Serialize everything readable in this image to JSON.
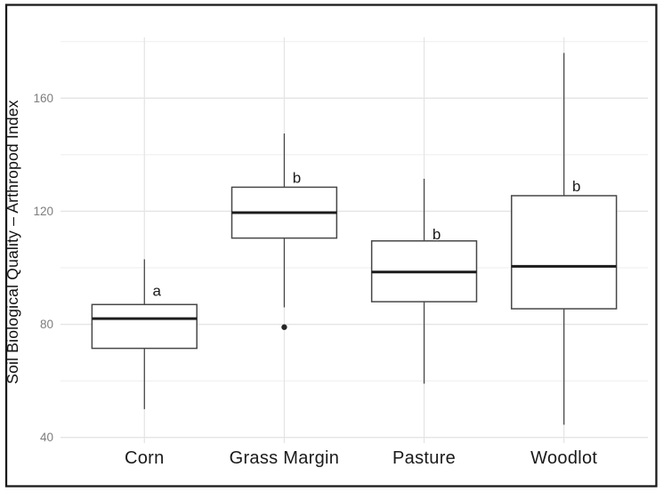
{
  "chart_data": {
    "type": "boxplot",
    "title": "",
    "xlabel": "",
    "ylabel": "Soil Biological Quality – Arthropod Index",
    "ylim": [
      38,
      181.5
    ],
    "yticks_major": [
      40,
      80,
      120,
      160
    ],
    "yticks_minor": [
      60,
      100,
      140,
      180
    ],
    "grid": true,
    "legend": "none",
    "categories": [
      "Corn",
      "Grass Margin",
      "Pasture",
      "Woodlot"
    ],
    "series": [
      {
        "category": "Corn",
        "whisker_low": 50,
        "q1": 71.5,
        "median": 82,
        "q3": 87,
        "whisker_high": 103,
        "outliers": [],
        "sig_letter": "a",
        "letter_y": 92
      },
      {
        "category": "Grass Margin",
        "whisker_low": 86,
        "q1": 110.5,
        "median": 119.5,
        "q3": 128.5,
        "whisker_high": 147.5,
        "outliers": [
          79
        ],
        "sig_letter": "b",
        "letter_y": 132
      },
      {
        "category": "Pasture",
        "whisker_low": 59,
        "q1": 88,
        "median": 98.5,
        "q3": 109.5,
        "whisker_high": 131.5,
        "outliers": [],
        "sig_letter": "b",
        "letter_y": 112
      },
      {
        "category": "Woodlot",
        "whisker_low": 44.5,
        "q1": 85.5,
        "median": 100.5,
        "q3": 125.5,
        "whisker_high": 176,
        "outliers": [],
        "sig_letter": "b",
        "letter_y": 129
      }
    ],
    "colors": {
      "background": "#ffffff",
      "panel_background": "#ffffff",
      "grid_major": "#e4e4e4",
      "grid_minor": "#f1f1f1",
      "box_fill": "#ffffff",
      "box_border": "#474747",
      "median": "#1c1c1c",
      "outlier": "#262626",
      "label_text": "#1a1a1a",
      "tick_text": "#7d7d7d",
      "figure_border": "#1a1a1a"
    }
  }
}
